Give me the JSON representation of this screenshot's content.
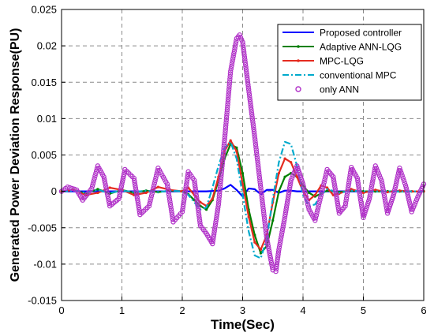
{
  "chart_data": {
    "type": "line",
    "title": "",
    "xlabel": "Time(Sec)",
    "ylabel": "Generated Power Deviation Response(PU)",
    "xlim": [
      0,
      6
    ],
    "ylim": [
      -0.015,
      0.025
    ],
    "grid": true,
    "legend_position": "top-right",
    "x_ticks": [
      "0",
      "1",
      "2",
      "3",
      "4",
      "5",
      "6"
    ],
    "y_ticks": [
      "0.025",
      "0.02",
      "0.015",
      "0.01",
      "0.005",
      "0",
      "-0.005",
      "-0.01",
      "-0.015"
    ],
    "series": [
      {
        "name": "Proposed controller",
        "color": "#0000ff",
        "style": "solid",
        "marker": "none",
        "x": [
          0,
          0.5,
          1.0,
          1.5,
          2.0,
          2.4,
          2.6,
          2.7,
          2.8,
          2.9,
          3.0,
          3.1,
          3.2,
          3.3,
          3.4,
          3.5,
          3.6,
          3.7,
          3.8,
          3.9,
          4.0,
          4.5,
          5.0,
          5.5,
          6.0
        ],
        "values": [
          0,
          0,
          0,
          0,
          0,
          0,
          0.0001,
          0.0004,
          0.0009,
          0.0002,
          -0.0007,
          0.0004,
          0.0003,
          -0.0004,
          0.0002,
          0.0002,
          -0.0002,
          0.0001,
          0.0001,
          0,
          0,
          0,
          0,
          0,
          0
        ]
      },
      {
        "name": "Adaptive ANN-LQG",
        "color": "#008000",
        "style": "solid",
        "marker": "dot",
        "x": [
          0,
          0.2,
          0.4,
          0.6,
          0.8,
          1.0,
          1.2,
          1.4,
          1.6,
          1.8,
          2.0,
          2.1,
          2.2,
          2.3,
          2.4,
          2.5,
          2.6,
          2.7,
          2.8,
          2.9,
          3.0,
          3.1,
          3.2,
          3.3,
          3.4,
          3.5,
          3.6,
          3.7,
          3.8,
          3.9,
          4.0,
          4.1,
          4.2,
          4.3,
          4.4,
          4.6,
          4.8,
          5.0,
          5.2,
          5.4,
          5.6,
          5.8,
          6.0
        ],
        "values": [
          0,
          0.0002,
          -0.0003,
          0.0003,
          -0.0003,
          0.0002,
          -0.0002,
          0.0001,
          -0.0001,
          0.0001,
          0,
          -0.0004,
          -0.0012,
          -0.002,
          -0.0025,
          -0.0012,
          0.0015,
          0.0045,
          0.0065,
          0.006,
          0.0025,
          -0.0025,
          -0.006,
          -0.0085,
          -0.0075,
          -0.004,
          0,
          0.002,
          0.0025,
          0.002,
          0.0008,
          -0.0002,
          -0.0007,
          -0.0003,
          0.0001,
          -0.0001,
          0.0001,
          0,
          0,
          0,
          0,
          0,
          0
        ]
      },
      {
        "name": "MPC-LQG",
        "color": "#e52b1f",
        "style": "solid",
        "marker": "dot",
        "x": [
          0,
          0.2,
          0.4,
          0.6,
          0.8,
          1.0,
          1.2,
          1.4,
          1.6,
          1.8,
          2.0,
          2.1,
          2.2,
          2.3,
          2.4,
          2.5,
          2.6,
          2.7,
          2.8,
          2.9,
          3.0,
          3.1,
          3.2,
          3.3,
          3.4,
          3.5,
          3.6,
          3.7,
          3.8,
          3.9,
          4.0,
          4.1,
          4.2,
          4.3,
          4.4,
          4.5,
          4.6,
          4.8,
          5.0,
          5.2,
          5.4,
          5.6,
          5.8,
          6.0
        ],
        "values": [
          0,
          0.0002,
          -0.0005,
          -0.0002,
          0.0005,
          0.0002,
          -0.0005,
          -0.0002,
          0.0006,
          0.0002,
          0,
          0.0005,
          -0.0005,
          -0.0015,
          -0.002,
          -0.001,
          0.002,
          0.0055,
          0.007,
          0.0055,
          0.001,
          -0.0035,
          -0.007,
          -0.008,
          -0.006,
          -0.0015,
          0.0025,
          0.0045,
          0.004,
          0.002,
          0,
          -0.0012,
          -0.0005,
          0.0008,
          0.0005,
          -0.0005,
          -0.0003,
          0.0003,
          -0.0002,
          0.0002,
          -0.0001,
          0.0001,
          0,
          0
        ]
      },
      {
        "name": "conventional MPC",
        "color": "#00aacc",
        "style": "dashdot",
        "marker": "none",
        "x": [
          0,
          0.2,
          0.4,
          0.6,
          0.8,
          1.0,
          1.2,
          1.4,
          1.6,
          1.8,
          2.0,
          2.1,
          2.2,
          2.3,
          2.4,
          2.5,
          2.6,
          2.7,
          2.8,
          2.9,
          3.0,
          3.1,
          3.2,
          3.3,
          3.4,
          3.5,
          3.6,
          3.7,
          3.8,
          3.9,
          4.0,
          4.1,
          4.2,
          4.3,
          4.4,
          4.6,
          4.8,
          5.0,
          5.2,
          5.4,
          5.6,
          5.8,
          6.0
        ],
        "values": [
          0,
          0.0001,
          -0.0002,
          0.0002,
          -0.0002,
          0.0001,
          -0.0001,
          0.0001,
          -0.0001,
          0.0001,
          0,
          -0.0005,
          -0.0015,
          -0.0025,
          -0.0022,
          0.0005,
          0.0035,
          0.006,
          0.0068,
          0.0045,
          -0.0005,
          -0.0055,
          -0.0088,
          -0.0092,
          -0.0065,
          -0.001,
          0.004,
          0.0068,
          0.0065,
          0.0035,
          -0.0005,
          -0.002,
          -0.0018,
          -0.0005,
          0.0003,
          -0.0002,
          0.0001,
          0,
          0,
          0,
          0,
          0,
          0
        ]
      },
      {
        "name": "only ANN",
        "color": "#b030c8",
        "style": "none",
        "marker": "circle",
        "x": [
          0,
          0.1,
          0.25,
          0.35,
          0.5,
          0.6,
          0.7,
          0.8,
          0.95,
          1.05,
          1.2,
          1.3,
          1.45,
          1.6,
          1.75,
          1.85,
          2.0,
          2.1,
          2.2,
          2.3,
          2.4,
          2.5,
          2.6,
          2.7,
          2.8,
          2.9,
          2.95,
          3.0,
          3.1,
          3.2,
          3.3,
          3.4,
          3.5,
          3.55,
          3.6,
          3.7,
          3.8,
          3.9,
          4.0,
          4.1,
          4.2,
          4.3,
          4.4,
          4.5,
          4.6,
          4.7,
          4.8,
          4.9,
          5.0,
          5.1,
          5.2,
          5.3,
          5.4,
          5.5,
          5.6,
          5.7,
          5.8,
          5.9,
          6.0
        ],
        "values": [
          0,
          0.0006,
          0.0002,
          -0.0012,
          0.0004,
          0.0035,
          0.002,
          -0.002,
          -0.001,
          0.003,
          0.0018,
          -0.0032,
          -0.002,
          0.0032,
          0.001,
          -0.0042,
          -0.0028,
          0.0027,
          0.0015,
          -0.0047,
          -0.0058,
          -0.0072,
          -0.0018,
          0.007,
          0.0165,
          0.021,
          0.0215,
          0.0205,
          0.014,
          0.0075,
          0.0005,
          -0.0065,
          -0.0108,
          -0.011,
          -0.008,
          -0.0035,
          0.0015,
          0.0035,
          0.001,
          -0.0025,
          -0.004,
          -0.0005,
          0.003,
          0.002,
          -0.003,
          -0.002,
          0.0033,
          0.0018,
          -0.0036,
          -0.001,
          0.0035,
          0.0015,
          -0.003,
          -0.0005,
          0.0032,
          0.0008,
          -0.0028,
          -0.0008,
          0.001
        ]
      }
    ]
  }
}
